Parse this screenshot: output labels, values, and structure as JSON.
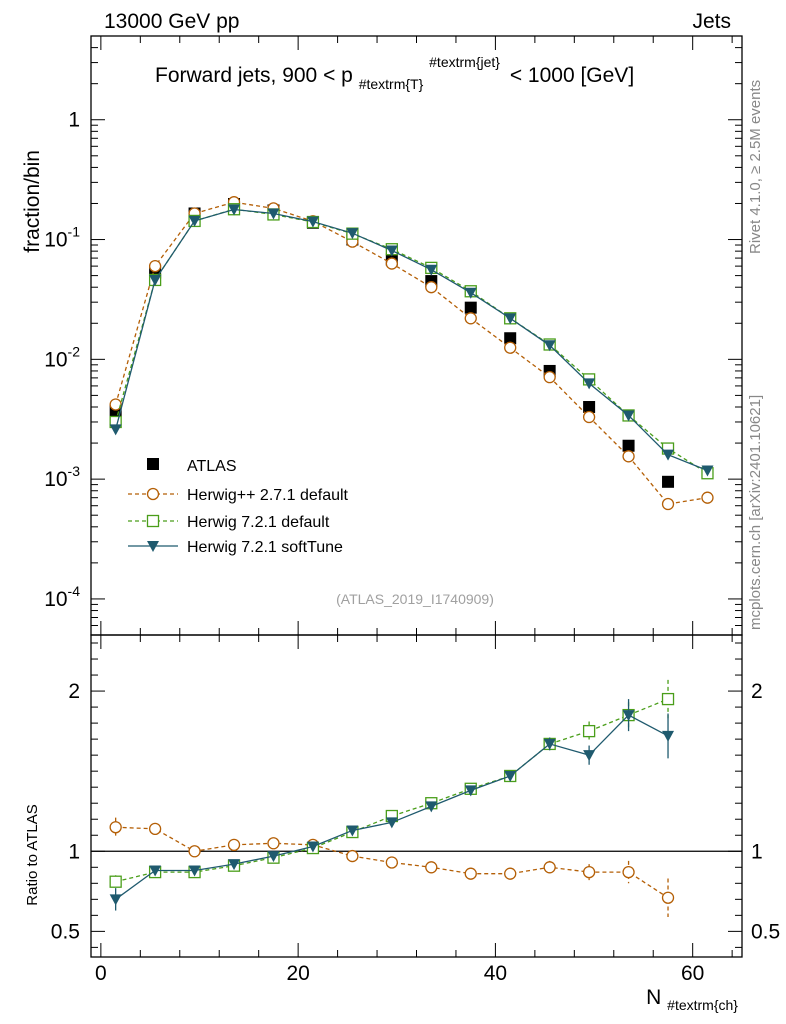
{
  "header": {
    "left": "13000 GeV pp",
    "right": "Jets",
    "side_rivet": "Rivet 4.1.0, ≥ 2.5M events",
    "side_mcplots": "mcplots.cern.ch [arXiv:2401.10621]"
  },
  "colors": {
    "atlas": "#000000",
    "herwigpp": "#b45f06",
    "herwig_default": "#4a9e1a",
    "herwig_softtune": "#1f5a6e",
    "watermark": "#a0a0a0"
  },
  "chart_data": [
    {
      "type": "scatter",
      "panel": "main",
      "title": "Forward jets, 900 < p",
      "title_sub": "#textrm{T}",
      "title_sup": "#textrm{jet}",
      "title_end": "< 1000 [GeV]",
      "ylabel": "fraction/bin",
      "yscale": "log",
      "ylim": [
        5e-05,
        5
      ],
      "xlim": [
        -1,
        65
      ],
      "y_ticks": [
        {
          "value": 0.0001,
          "base": "10",
          "exp": "-4"
        },
        {
          "value": 0.001,
          "base": "10",
          "exp": "-3"
        },
        {
          "value": 0.01,
          "base": "10",
          "exp": "-2"
        },
        {
          "value": 0.1,
          "base": "10",
          "exp": "-1"
        },
        {
          "value": 1,
          "base": "1",
          "exp": ""
        }
      ],
      "watermark": "(ATLAS_2019_I1740909)",
      "x": [
        1.5,
        5.5,
        9.5,
        13.5,
        17.5,
        21.5,
        25.5,
        29.5,
        33.5,
        37.5,
        41.5,
        45.5,
        49.5,
        53.5,
        57.5,
        61.5
      ],
      "series": [
        {
          "name": "ATLAS",
          "values": [
            0.0037,
            0.053,
            0.165,
            0.198,
            0.175,
            0.138,
            0.1,
            0.068,
            0.045,
            0.027,
            0.015,
            0.008,
            0.004,
            0.0019,
            0.00095,
            null
          ]
        },
        {
          "name": "Herwig++ 2.7.1 default",
          "values": [
            0.0042,
            0.06,
            0.165,
            0.205,
            0.182,
            0.142,
            0.096,
            0.063,
            0.04,
            0.022,
            0.0125,
            0.0071,
            0.0033,
            0.00155,
            0.00062,
            0.0007
          ]
        },
        {
          "name": "Herwig 7.2.1 default",
          "values": [
            0.003,
            0.046,
            0.143,
            0.179,
            0.162,
            0.14,
            0.112,
            0.083,
            0.058,
            0.037,
            0.022,
            0.0133,
            0.0068,
            0.0034,
            0.0018,
            0.00112
          ]
        },
        {
          "name": "Herwig 7.2.1 softTune",
          "values": [
            0.0026,
            0.046,
            0.143,
            0.178,
            0.165,
            0.141,
            0.113,
            0.081,
            0.056,
            0.036,
            0.022,
            0.0131,
            0.0063,
            0.0034,
            0.0016,
            0.00118
          ]
        }
      ]
    },
    {
      "type": "scatter",
      "panel": "ratio",
      "ylabel": "Ratio to ATLAS",
      "xlabel": "N",
      "xlabel_sub": "#textrm{ch}",
      "ylim": [
        0.34,
        2.35
      ],
      "xlim": [
        -1,
        65
      ],
      "x_tick_labels": [
        "0",
        "20",
        "40",
        "60"
      ],
      "y_tick_labels": [
        "0.5",
        "1",
        "2"
      ],
      "y_tick_right_labels": [
        "0.5",
        "1",
        "2"
      ],
      "x": [
        1.5,
        5.5,
        9.5,
        13.5,
        17.5,
        21.5,
        25.5,
        29.5,
        33.5,
        37.5,
        41.5,
        45.5,
        49.5,
        53.5,
        57.5,
        61.5
      ],
      "series": [
        {
          "name": "Herwig++ 2.7.1 default",
          "values": [
            1.15,
            1.14,
            1.0,
            1.04,
            1.05,
            1.04,
            0.97,
            0.93,
            0.9,
            0.86,
            0.86,
            0.9,
            0.87,
            0.87,
            0.71,
            null
          ],
          "err": [
            0.06,
            0.03,
            0.02,
            0.02,
            0.02,
            0.02,
            0.02,
            0.02,
            0.02,
            0.02,
            0.03,
            0.04,
            0.05,
            0.07,
            0.12,
            null
          ]
        },
        {
          "name": "Herwig 7.2.1 default",
          "values": [
            0.81,
            0.87,
            0.87,
            0.91,
            0.96,
            1.02,
            1.12,
            1.22,
            1.3,
            1.39,
            1.47,
            1.67,
            1.75,
            1.85,
            1.95,
            null
          ],
          "err": [
            0.04,
            0.02,
            0.02,
            0.02,
            0.02,
            0.02,
            0.02,
            0.02,
            0.02,
            0.03,
            0.03,
            0.04,
            0.06,
            0.08,
            0.12,
            null
          ]
        },
        {
          "name": "Herwig 7.2.1 softTune",
          "values": [
            0.7,
            0.88,
            0.88,
            0.92,
            0.97,
            1.03,
            1.13,
            1.18,
            1.28,
            1.38,
            1.47,
            1.67,
            1.6,
            1.85,
            1.72,
            null
          ],
          "err": [
            0.07,
            0.02,
            0.02,
            0.02,
            0.02,
            0.02,
            0.02,
            0.02,
            0.02,
            0.03,
            0.03,
            0.04,
            0.06,
            0.1,
            0.14,
            null
          ]
        }
      ]
    }
  ]
}
